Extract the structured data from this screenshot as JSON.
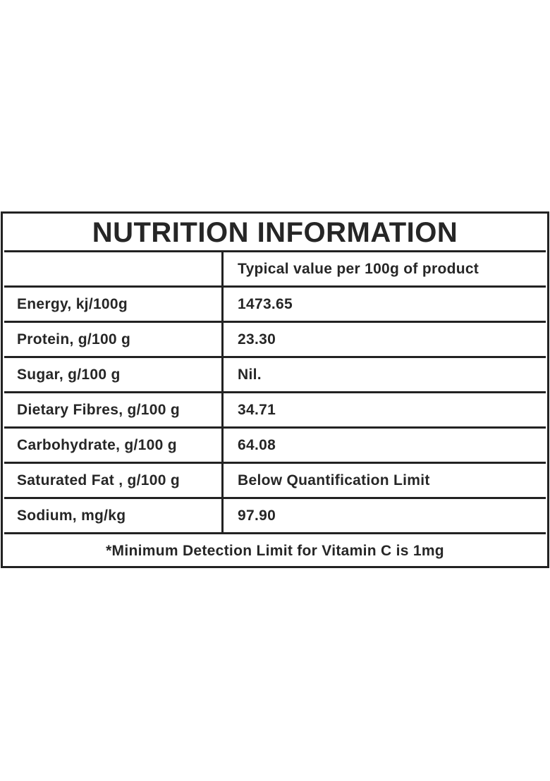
{
  "title": "NUTRITION INFORMATION",
  "column_header": "Typical value per 100g of product",
  "rows": [
    {
      "label": "Energy, kj/100g",
      "value": "1473.65"
    },
    {
      "label": "Protein, g/100 g",
      "value": "23.30"
    },
    {
      "label": "Sugar, g/100 g",
      "value": "Nil."
    },
    {
      "label": "Dietary Fibres, g/100 g",
      "value": "34.71"
    },
    {
      "label": "Carbohydrate, g/100 g",
      "value": "64.08"
    },
    {
      "label": "Saturated Fat , g/100 g",
      "value": "Below Quantification Limit"
    },
    {
      "label": "Sodium, mg/kg",
      "value": "97.90"
    }
  ],
  "footnote": "*Minimum Detection Limit for Vitamin C is 1mg"
}
